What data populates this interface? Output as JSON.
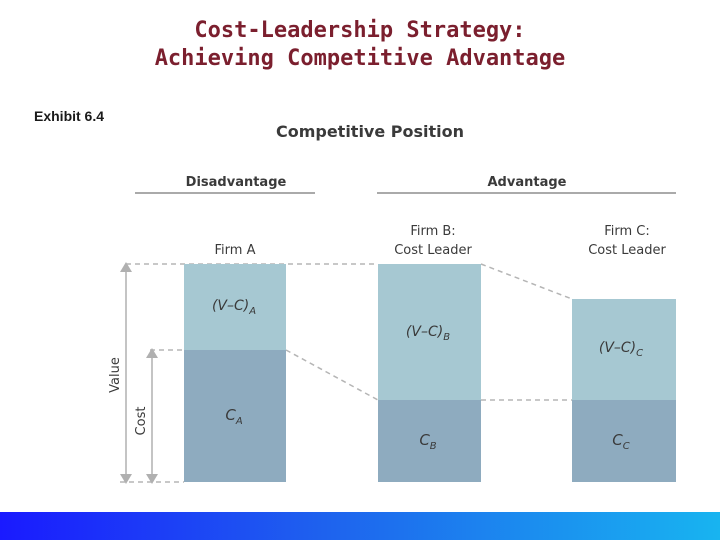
{
  "slide": {
    "title_line1": "Cost-Leadership Strategy:",
    "title_line2": "Achieving Competitive Advantage",
    "exhibit_label": "Exhibit 6.4"
  },
  "diagram": {
    "heading": "Competitive Position",
    "group_disadvantage": "Disadvantage",
    "group_advantage": "Advantage",
    "firm_a": {
      "label": "Firm A",
      "vc": "(V–C)",
      "vc_sub": "A",
      "c": "C",
      "c_sub": "A"
    },
    "firm_b": {
      "label_line1": "Firm B:",
      "label_line2": "Cost Leader",
      "vc": "(V–C)",
      "vc_sub": "B",
      "c": "C",
      "c_sub": "B"
    },
    "firm_c": {
      "label_line1": "Firm C:",
      "label_line2": "Cost Leader",
      "vc": "(V–C)",
      "vc_sub": "C",
      "c": "C",
      "c_sub": "C"
    },
    "axis_value": "Value",
    "axis_cost": "Cost"
  },
  "colors": {
    "title": "#7b1f2e",
    "margin_bar": "#a6c8d2",
    "cost_bar": "#8eabbf",
    "dashed_line": "#b5b5b5",
    "footer_start": "#1a1aff",
    "footer_end": "#18b4f0"
  }
}
